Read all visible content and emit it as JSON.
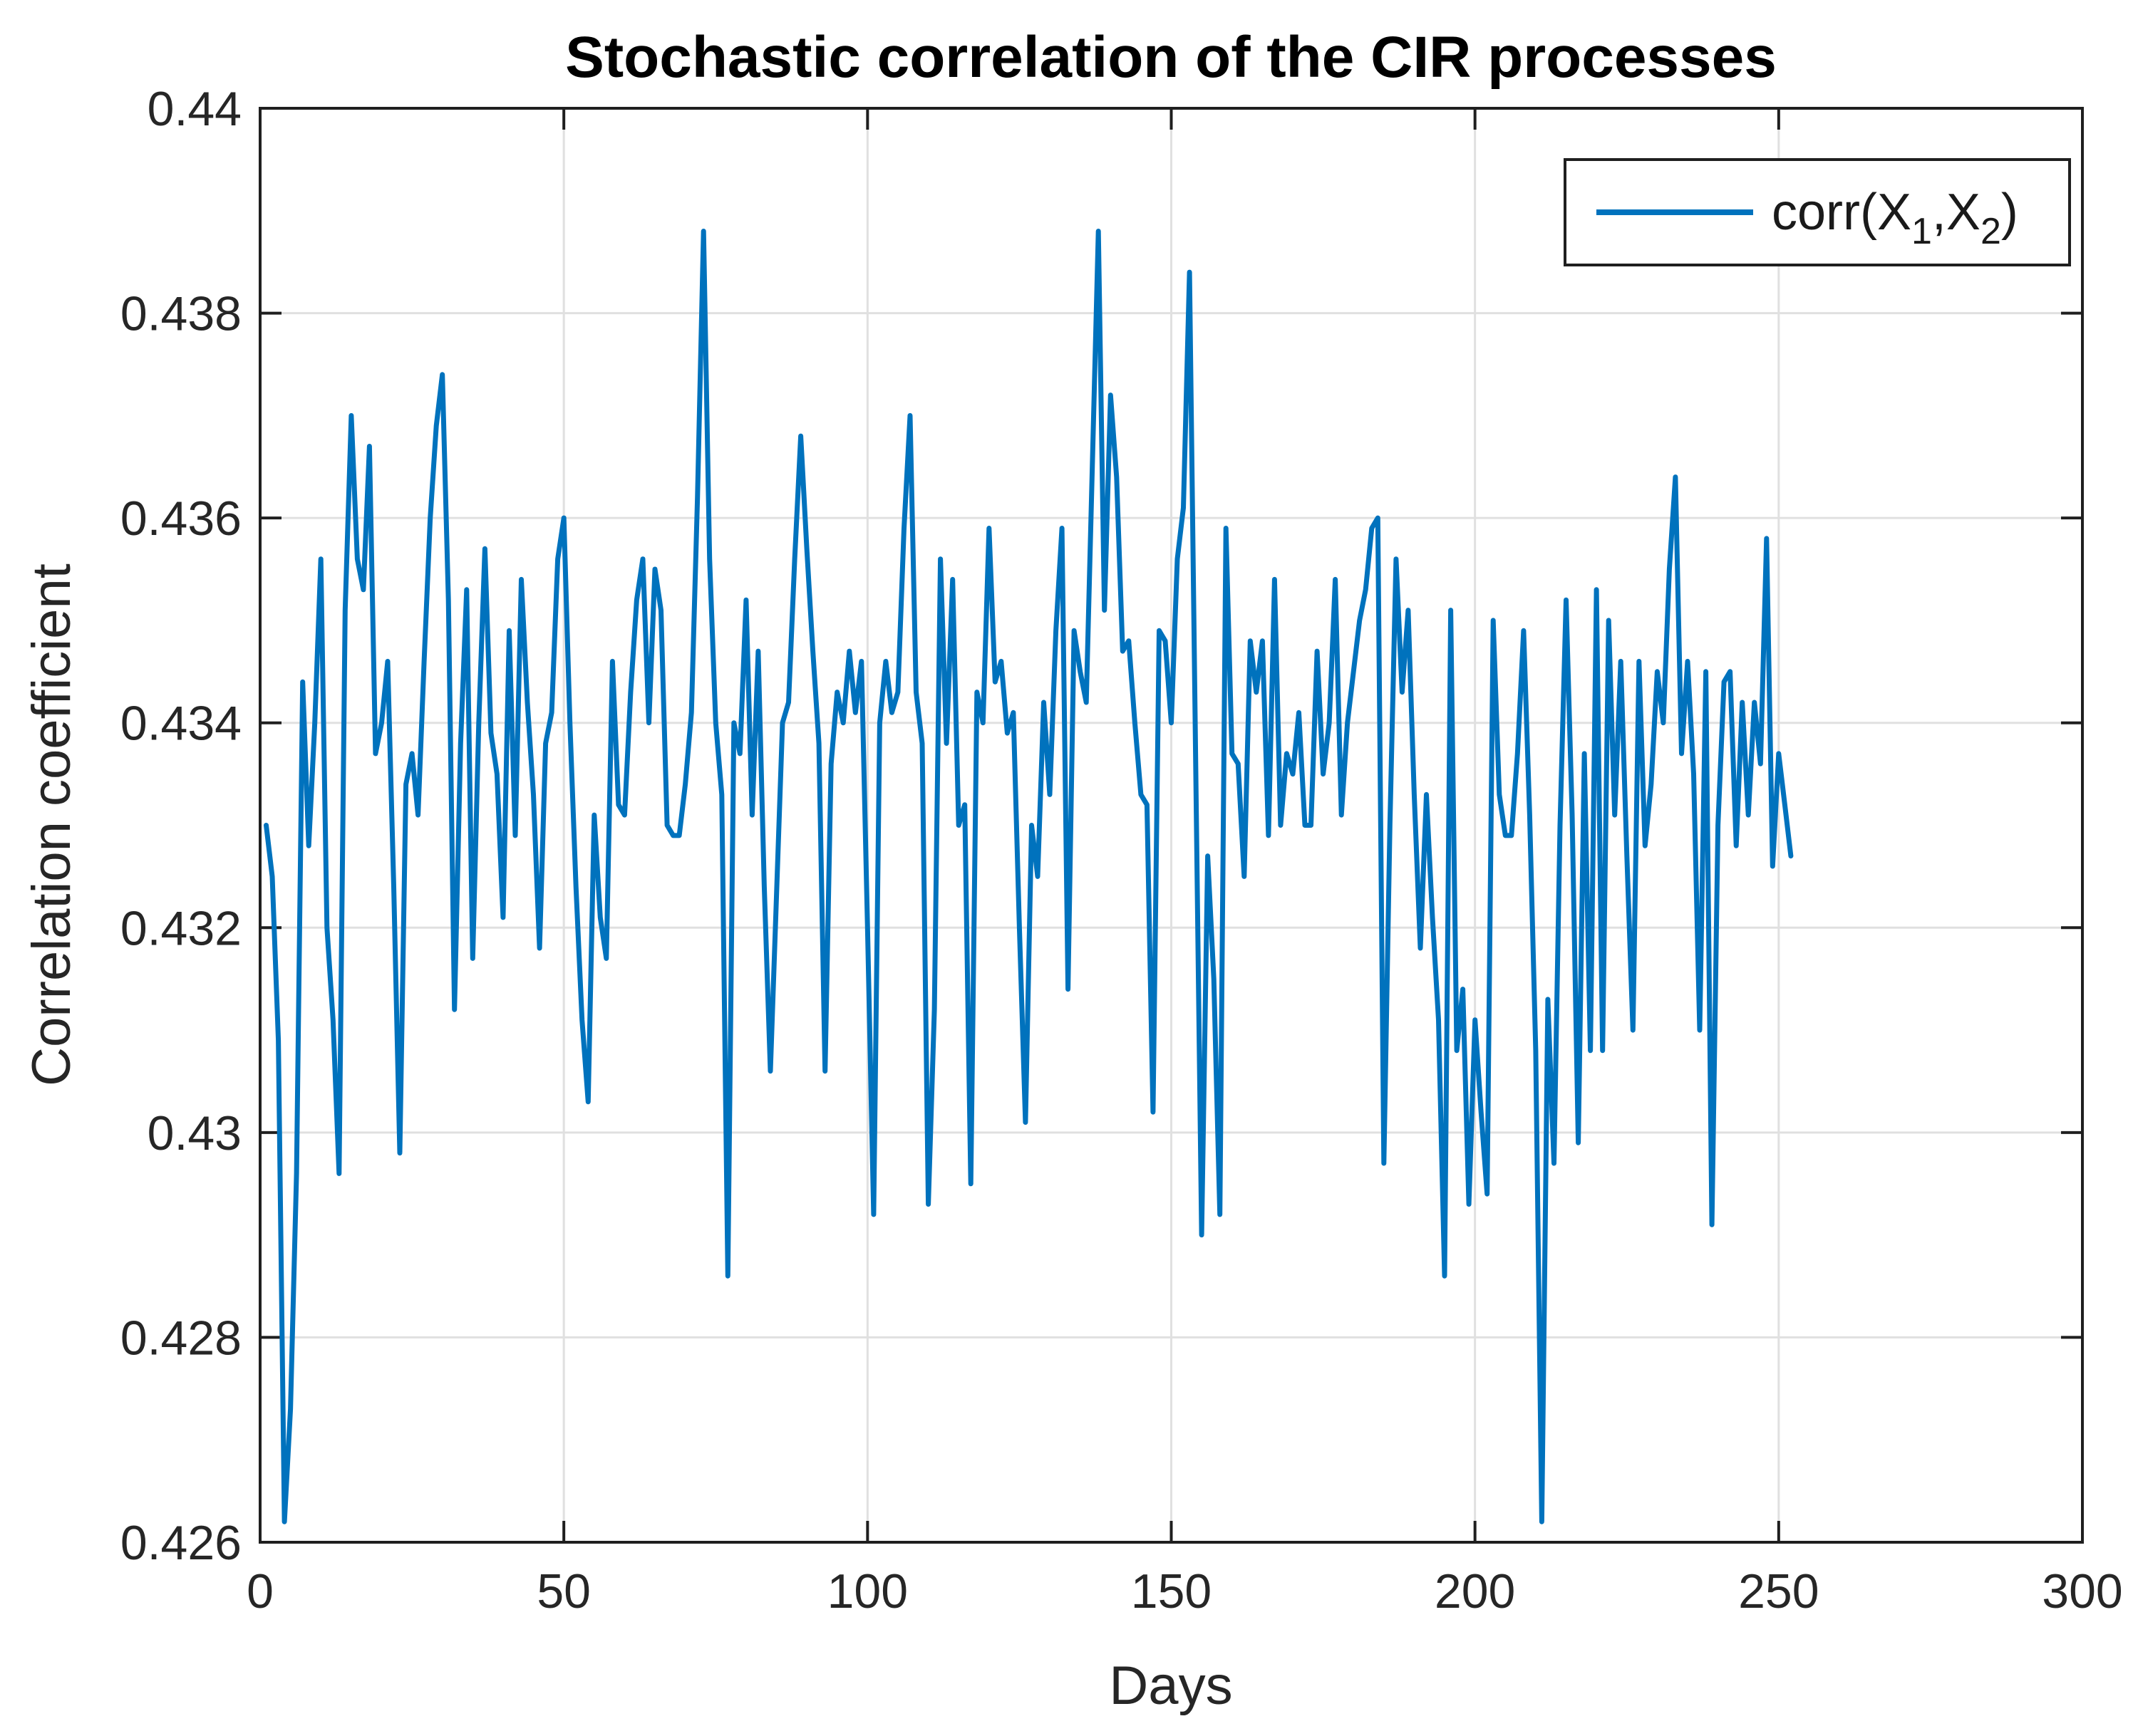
{
  "chart_data": {
    "type": "line",
    "title": "Stochastic correlation of the CIR processes",
    "xlabel": "Days",
    "ylabel": "Correlation coefficient",
    "xlim": [
      0,
      300
    ],
    "ylim": [
      0.426,
      0.44
    ],
    "x_ticks": [
      0,
      50,
      100,
      150,
      200,
      250,
      300
    ],
    "x_tick_labels": [
      "0",
      "50",
      "100",
      "150",
      "200",
      "250",
      "300"
    ],
    "y_ticks": [
      0.426,
      0.428,
      0.43,
      0.432,
      0.434,
      0.436,
      0.438,
      0.44
    ],
    "y_tick_labels": [
      "0.426",
      "0.428",
      "0.43",
      "0.432",
      "0.434",
      "0.436",
      "0.438",
      "0.44"
    ],
    "grid": true,
    "legend_position": "top-right",
    "legend": {
      "prefix": "corr(X",
      "sub1": "1",
      "mid": ",X",
      "sub2": "2",
      "suffix": ")"
    },
    "series": [
      {
        "name": "corr(X_1,X_2)",
        "color": "#0072BD",
        "x_start": 1,
        "x_step": 1,
        "values": [
          0.433,
          0.4325,
          0.4309,
          0.4262,
          0.4273,
          0.4296,
          0.4344,
          0.4328,
          0.434,
          0.4356,
          0.432,
          0.4311,
          0.4296,
          0.4351,
          0.437,
          0.4356,
          0.4353,
          0.4367,
          0.4337,
          0.434,
          0.4346,
          0.4324,
          0.4298,
          0.4334,
          0.4337,
          0.4331,
          0.4346,
          0.436,
          0.4369,
          0.4374,
          0.4352,
          0.4312,
          0.4338,
          0.4353,
          0.4317,
          0.434,
          0.4357,
          0.4339,
          0.4335,
          0.4321,
          0.4349,
          0.4329,
          0.4354,
          0.4342,
          0.4333,
          0.4318,
          0.4338,
          0.4341,
          0.4356,
          0.436,
          0.434,
          0.4324,
          0.4311,
          0.4303,
          0.4331,
          0.4321,
          0.4317,
          0.4346,
          0.4332,
          0.4331,
          0.4343,
          0.4352,
          0.4356,
          0.434,
          0.4355,
          0.4351,
          0.433,
          0.4329,
          0.4329,
          0.4334,
          0.4341,
          0.4362,
          0.4388,
          0.4356,
          0.434,
          0.4333,
          0.4286,
          0.434,
          0.4337,
          0.4352,
          0.4331,
          0.4347,
          0.4324,
          0.4306,
          0.4323,
          0.434,
          0.4342,
          0.4356,
          0.4368,
          0.4357,
          0.4347,
          0.4338,
          0.4306,
          0.4336,
          0.4343,
          0.434,
          0.4347,
          0.4341,
          0.4346,
          0.432,
          0.4292,
          0.434,
          0.4346,
          0.4341,
          0.4343,
          0.4359,
          0.437,
          0.4343,
          0.4338,
          0.4293,
          0.4312,
          0.4356,
          0.4338,
          0.4354,
          0.433,
          0.4332,
          0.4295,
          0.4343,
          0.434,
          0.4359,
          0.4344,
          0.4346,
          0.4339,
          0.4341,
          0.432,
          0.4301,
          0.433,
          0.4325,
          0.4342,
          0.4333,
          0.4349,
          0.4359,
          0.4314,
          0.4349,
          0.4345,
          0.4342,
          0.4365,
          0.4388,
          0.4351,
          0.4372,
          0.4364,
          0.4347,
          0.4348,
          0.434,
          0.4333,
          0.4332,
          0.4302,
          0.4349,
          0.4348,
          0.434,
          0.4356,
          0.4361,
          0.4384,
          0.4337,
          0.429,
          0.4327,
          0.4315,
          0.4292,
          0.4359,
          0.4337,
          0.4336,
          0.4325,
          0.4348,
          0.4343,
          0.4348,
          0.4329,
          0.4354,
          0.433,
          0.4337,
          0.4335,
          0.4341,
          0.433,
          0.433,
          0.4347,
          0.4335,
          0.434,
          0.4354,
          0.4331,
          0.434,
          0.4345,
          0.435,
          0.4353,
          0.4359,
          0.436,
          0.4297,
          0.433,
          0.4356,
          0.4343,
          0.4351,
          0.4333,
          0.4318,
          0.4333,
          0.4321,
          0.4311,
          0.4286,
          0.4351,
          0.4308,
          0.4314,
          0.4293,
          0.4311,
          0.4302,
          0.4294,
          0.435,
          0.4333,
          0.4329,
          0.4329,
          0.4337,
          0.4349,
          0.4331,
          0.4308,
          0.4262,
          0.4313,
          0.4297,
          0.433,
          0.4352,
          0.4331,
          0.4299,
          0.4337,
          0.4308,
          0.4353,
          0.4308,
          0.435,
          0.4331,
          0.4346,
          0.4327,
          0.431,
          0.4346,
          0.4328,
          0.4334,
          0.4345,
          0.434,
          0.4355,
          0.4364,
          0.4337,
          0.4346,
          0.4335,
          0.431,
          0.4345,
          0.4291,
          0.433,
          0.4344,
          0.4345,
          0.4328,
          0.4342,
          0.4331,
          0.4342,
          0.4336,
          0.4358,
          0.4326,
          0.4337,
          0.4332,
          0.4327
        ]
      }
    ]
  }
}
